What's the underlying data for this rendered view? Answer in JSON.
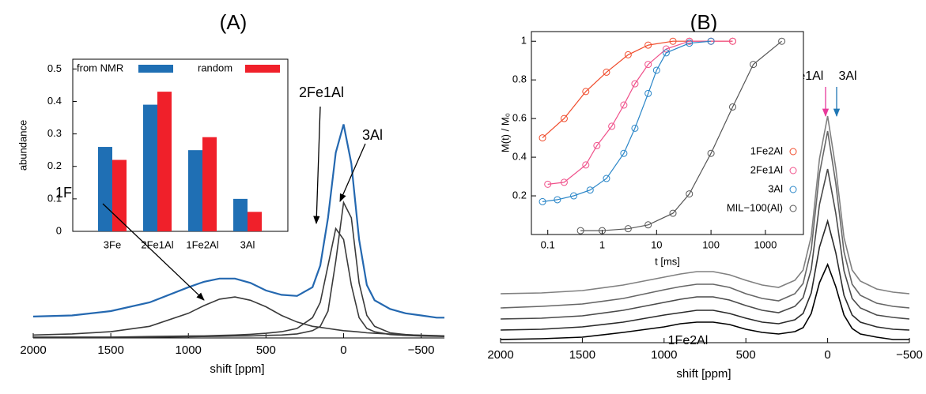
{
  "chart_data": [
    {
      "type": "line",
      "title": "(A)",
      "xlabel": "shift [ppm]",
      "x": [
        2000,
        1750,
        1500,
        1250,
        1000,
        900,
        800,
        700,
        600,
        500,
        400,
        300,
        200,
        150,
        100,
        50,
        0,
        -50,
        -100,
        -150,
        -200,
        -300,
        -400,
        -500,
        -600,
        -650
      ],
      "xlim": [
        2000,
        -650
      ],
      "xticks": [
        2000,
        1500,
        1000,
        500,
        0,
        {
          "value": -500,
          "label": "−500"
        }
      ],
      "series": [
        {
          "color": "#3a3a3a",
          "values": [
            0.01,
            0.015,
            0.025,
            0.05,
            0.11,
            0.145,
            0.175,
            0.185,
            0.17,
            0.14,
            0.1,
            0.07,
            0.05,
            0.045,
            0.04,
            0.035,
            0.03,
            0.027,
            0.024,
            0.02,
            0.018,
            0.014,
            0.011,
            0.009,
            0.007,
            0.006
          ]
        },
        {
          "color": "#3a3a3a",
          "values": [
            0,
            0,
            0,
            0.003,
            0.005,
            0.006,
            0.008,
            0.01,
            0.013,
            0.018,
            0.025,
            0.04,
            0.09,
            0.16,
            0.33,
            0.5,
            0.45,
            0.24,
            0.09,
            0.04,
            0.025,
            0.012,
            0.008,
            0.005,
            0.004,
            0.003
          ]
        },
        {
          "color": "#3a3a3a",
          "values": [
            0,
            0,
            0,
            0,
            0.002,
            0.003,
            0.004,
            0.005,
            0.006,
            0.008,
            0.01,
            0.015,
            0.03,
            0.05,
            0.12,
            0.35,
            0.62,
            0.55,
            0.25,
            0.1,
            0.05,
            0.02,
            0.012,
            0.008,
            0.006,
            0.005
          ]
        },
        {
          "color": "#2468b0",
          "values": [
            0.095,
            0.1,
            0.12,
            0.16,
            0.23,
            0.255,
            0.27,
            0.27,
            0.25,
            0.215,
            0.195,
            0.19,
            0.23,
            0.33,
            0.55,
            0.85,
            0.98,
            0.8,
            0.45,
            0.24,
            0.17,
            0.13,
            0.11,
            0.1,
            0.09,
            0.09
          ]
        }
      ],
      "annotations": [
        {
          "text": "2Fe1Al"
        },
        {
          "text": "3Al"
        },
        {
          "text": "1Fe2Al"
        }
      ]
    },
    {
      "type": "bar",
      "ylabel": "abundance",
      "categories": [
        "3Fe",
        "2Fe1Al",
        "1Fe2Al",
        "3Al"
      ],
      "series": [
        {
          "name": "from NMR",
          "color": "#1f6fb4",
          "values": [
            0.26,
            0.39,
            0.25,
            0.1
          ]
        },
        {
          "name": "random",
          "color": "#f0202a",
          "values": [
            0.22,
            0.43,
            0.29,
            0.06
          ]
        }
      ],
      "ylim": [
        0,
        0.53
      ],
      "yticks": [
        0,
        0.1,
        0.2,
        0.3,
        0.4,
        0.5
      ]
    },
    {
      "type": "line",
      "title": "(B)",
      "xlabel": "shift [ppm]",
      "x": [
        2000,
        1750,
        1500,
        1250,
        1000,
        900,
        800,
        700,
        600,
        500,
        400,
        300,
        200,
        150,
        100,
        50,
        0,
        -50,
        -100,
        -150,
        -200,
        -300,
        -400,
        -500
      ],
      "xlim": [
        2000,
        -500
      ],
      "xticks": [
        2000,
        1500,
        1000,
        500,
        0,
        {
          "value": -500,
          "label": "−500"
        }
      ],
      "series": [
        {
          "color": "#000000",
          "values": [
            10,
            11,
            13,
            19,
            26,
            30,
            32,
            32,
            29,
            23,
            19,
            17,
            20,
            25,
            43,
            82,
            105,
            77,
            41,
            24,
            17,
            13,
            10,
            10
          ]
        },
        {
          "color": "#2a2a2a",
          "values": [
            22,
            23,
            26,
            32,
            41,
            44,
            47,
            47,
            43,
            37,
            32,
            30,
            35,
            43,
            69,
            127,
            160,
            120,
            66,
            41,
            32,
            26,
            23,
            22
          ]
        },
        {
          "color": "#4a4a4a",
          "values": [
            36,
            37,
            40,
            47,
            57,
            61,
            64,
            64,
            60,
            53,
            47,
            44,
            52,
            63,
            99,
            181,
            226,
            170,
            97,
            62,
            50,
            41,
            38,
            36
          ]
        },
        {
          "color": "#666666",
          "values": [
            50,
            52,
            55,
            62,
            73,
            77,
            80,
            80,
            76,
            68,
            62,
            59,
            68,
            81,
            124,
            220,
            274,
            208,
            121,
            80,
            66,
            56,
            52,
            50
          ]
        },
        {
          "color": "#808080",
          "values": [
            68,
            69,
            72,
            79,
            89,
            93,
            96,
            96,
            92,
            85,
            79,
            76,
            85,
            98,
            141,
            239,
            293,
            227,
            139,
            98,
            84,
            74,
            70,
            68
          ]
        }
      ],
      "annotations": [
        {
          "text": "2Fe1Al",
          "color": "#e8399a"
        },
        {
          "text": "3Al",
          "color": "#1f77b4"
        },
        {
          "text": "1Fe2Al",
          "color": "#e8202a"
        }
      ]
    },
    {
      "type": "scatter",
      "xlabel": "t [ms]",
      "ylabel": "M(t) / M₀",
      "log_x": true,
      "xlim": [
        0.05,
        5000
      ],
      "xticks": [
        0.1,
        1,
        10,
        100,
        1000
      ],
      "ylim": [
        0,
        1.05
      ],
      "yticks": [
        0.2,
        0.4,
        0.6,
        0.8,
        1
      ],
      "series": [
        {
          "name": "1Fe2Al",
          "color": "#f04a2a",
          "x": [
            0.08,
            0.2,
            0.5,
            1.2,
            3,
            7,
            20,
            40,
            100,
            250
          ],
          "values": [
            0.5,
            0.6,
            0.74,
            0.84,
            0.93,
            0.98,
            1,
            1,
            1,
            1
          ]
        },
        {
          "name": "2Fe1Al",
          "color": "#f0508a",
          "x": [
            0.1,
            0.2,
            0.5,
            0.8,
            1.5,
            2.5,
            4,
            7,
            15,
            40,
            100,
            250
          ],
          "values": [
            0.26,
            0.27,
            0.36,
            0.46,
            0.56,
            0.67,
            0.78,
            0.88,
            0.96,
            1,
            1,
            1
          ]
        },
        {
          "name": "3Al",
          "color": "#2a86c8",
          "x": [
            0.08,
            0.15,
            0.3,
            0.6,
            1.2,
            2.5,
            4,
            7,
            10,
            15,
            40,
            100
          ],
          "values": [
            0.17,
            0.18,
            0.2,
            0.23,
            0.29,
            0.42,
            0.55,
            0.73,
            0.85,
            0.94,
            0.99,
            1
          ]
        },
        {
          "name": "MIL−100(Al)",
          "color": "#555555",
          "x": [
            0.4,
            1,
            3,
            7,
            20,
            40,
            100,
            250,
            600,
            2000
          ],
          "values": [
            0.02,
            0.02,
            0.03,
            0.05,
            0.11,
            0.21,
            0.42,
            0.66,
            0.88,
            1
          ]
        }
      ]
    }
  ]
}
